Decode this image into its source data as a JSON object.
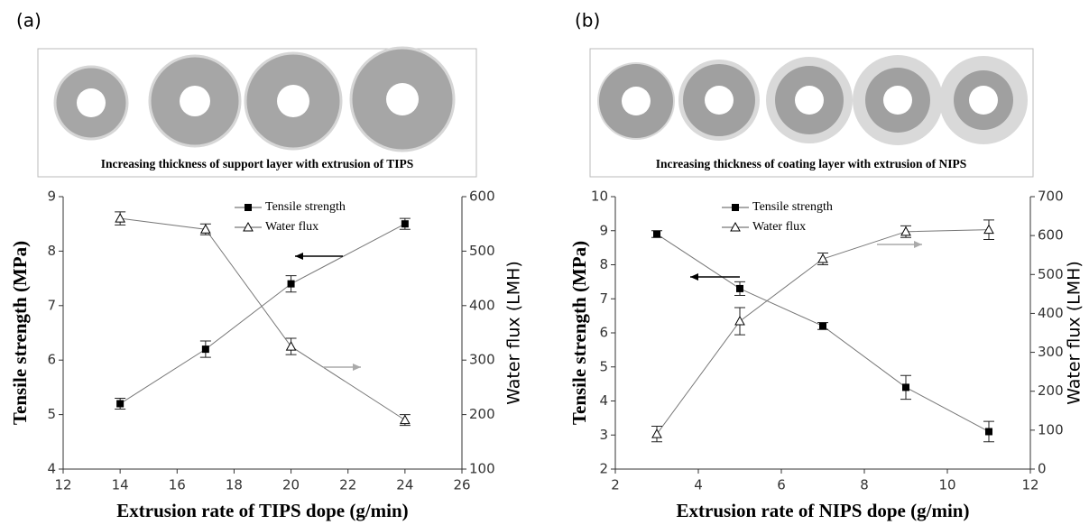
{
  "chart_data": [
    {
      "type": "line",
      "panel_label": "(a)",
      "caption": "Increasing thickness of support layer with extrusion of TIPS",
      "x_label": "Extrusion rate of TIPS dope (g/min)",
      "y_label": "Tensile strength (MPa)",
      "y2_label": "Water flux (LMH)",
      "x": [
        14,
        17,
        20,
        24
      ],
      "xlim": [
        12,
        26
      ],
      "xticks": [
        12,
        14,
        16,
        18,
        20,
        22,
        24,
        26
      ],
      "ylim": [
        4,
        9
      ],
      "yticks": [
        4,
        5,
        6,
        7,
        8,
        9
      ],
      "y2lim": [
        100,
        600
      ],
      "y2ticks": [
        100,
        200,
        300,
        400,
        500,
        600
      ],
      "legend": "top",
      "series": [
        {
          "name": "Tensile strength",
          "color": "#000000",
          "marker": "square",
          "values": [
            5.2,
            6.2,
            7.4,
            8.5
          ],
          "errors": [
            0.1,
            0.15,
            0.15,
            0.1
          ]
        },
        {
          "name": "Water flux",
          "color": "#000000",
          "marker": "triangle",
          "axis": "y2",
          "values": [
            560,
            540,
            325,
            190
          ],
          "errors": [
            12,
            10,
            15,
            10
          ]
        }
      ]
    },
    {
      "type": "line",
      "panel_label": "(b)",
      "caption": "Increasing thickness of coating layer with extrusion of NIPS",
      "x_label": "Extrusion rate of NIPS dope (g/min)",
      "y_label": "Tensile strength (MPa)",
      "y2_label": "Water flux (LMH)",
      "x": [
        3,
        5,
        7,
        9,
        11
      ],
      "xlim": [
        2,
        12
      ],
      "xticks": [
        2,
        4,
        6,
        8,
        10,
        12
      ],
      "ylim": [
        2,
        10
      ],
      "yticks": [
        2,
        3,
        4,
        5,
        6,
        7,
        8,
        9,
        10
      ],
      "y2lim": [
        0,
        700
      ],
      "y2ticks": [
        0,
        100,
        200,
        300,
        400,
        500,
        600,
        700
      ],
      "legend": "top",
      "series": [
        {
          "name": "Tensile strength",
          "color": "#000000",
          "marker": "square",
          "values": [
            8.9,
            7.3,
            6.2,
            4.4,
            3.1
          ],
          "errors": [
            0.1,
            0.2,
            0.1,
            0.35,
            0.3
          ]
        },
        {
          "name": "Water flux",
          "color": "#000000",
          "marker": "triangle",
          "axis": "y2",
          "values": [
            90,
            380,
            540,
            610,
            615
          ],
          "errors": [
            20,
            35,
            15,
            15,
            25
          ]
        }
      ]
    }
  ]
}
